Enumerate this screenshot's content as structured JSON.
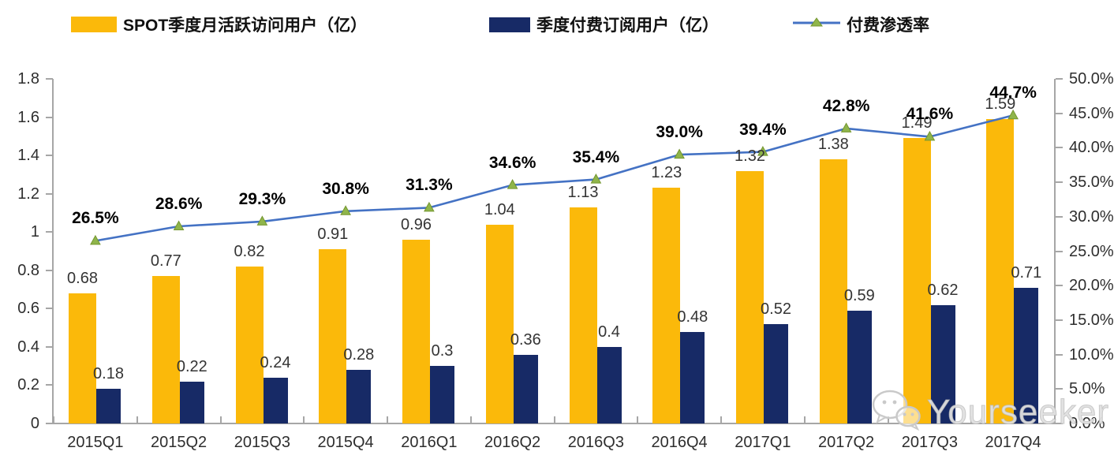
{
  "chart_data": {
    "type": "bar",
    "title": "",
    "categories": [
      "2015Q1",
      "2015Q2",
      "2015Q3",
      "2015Q4",
      "2016Q1",
      "2016Q2",
      "2016Q3",
      "2016Q4",
      "2017Q1",
      "2017Q2",
      "2017Q3",
      "2017Q4"
    ],
    "series": [
      {
        "name": "SPOT季度月活跃访问用户（亿）",
        "type": "bar",
        "axis": "left",
        "color": "#FBB90A",
        "values": [
          0.68,
          0.77,
          0.82,
          0.91,
          0.96,
          1.04,
          1.13,
          1.23,
          1.32,
          1.38,
          1.49,
          1.59
        ],
        "labels": [
          "0.68",
          "0.77",
          "0.82",
          "0.91",
          "0.96",
          "1.04",
          "1.13",
          "1.23",
          "1.32",
          "1.38",
          "1.49",
          "1.59"
        ]
      },
      {
        "name": "季度付费订阅用户（亿）",
        "type": "bar",
        "axis": "left",
        "color": "#172A66",
        "values": [
          0.18,
          0.22,
          0.24,
          0.28,
          0.3,
          0.36,
          0.4,
          0.48,
          0.52,
          0.59,
          0.62,
          0.71
        ],
        "labels": [
          "0.18",
          "0.22",
          "0.24",
          "0.28",
          "0.3",
          "0.36",
          "0.4",
          "0.48",
          "0.52",
          "0.59",
          "0.62",
          "0.71"
        ]
      },
      {
        "name": "付费渗透率",
        "type": "line",
        "axis": "right",
        "color": "#4472C4",
        "marker_color": "#8FB54B",
        "marker_edge_color": "#74962F",
        "values": [
          26.5,
          28.6,
          29.3,
          30.8,
          31.3,
          34.6,
          35.4,
          39.0,
          39.4,
          42.8,
          41.6,
          44.7
        ],
        "labels": [
          "26.5%",
          "28.6%",
          "29.3%",
          "30.8%",
          "31.3%",
          "34.6%",
          "35.4%",
          "39.0%",
          "39.4%",
          "42.8%",
          "41.6%",
          "44.7%"
        ]
      }
    ],
    "left_axis": {
      "min": 0,
      "max": 1.8,
      "tick_labels": [
        "1.8",
        "1.6",
        "1.4",
        "1.2",
        "1",
        "0.8",
        "0.6",
        "0.4",
        "0.2",
        "0"
      ]
    },
    "right_axis": {
      "min": 0,
      "max": 50,
      "tick_labels": [
        "50.0%",
        "45.0%",
        "40.0%",
        "35.0%",
        "30.0%",
        "25.0%",
        "20.0%",
        "15.0%",
        "10.0%",
        "5.0%",
        "0.0%"
      ]
    },
    "grid": false,
    "legend_position": "top"
  },
  "watermark": {
    "text": "Yourseeker",
    "icon": "wechat-icon"
  },
  "colors": {
    "axis": "#A6A6A6",
    "value_text": "#343434",
    "pct_text": "#000000",
    "watermark": "#E0E0E0"
  }
}
